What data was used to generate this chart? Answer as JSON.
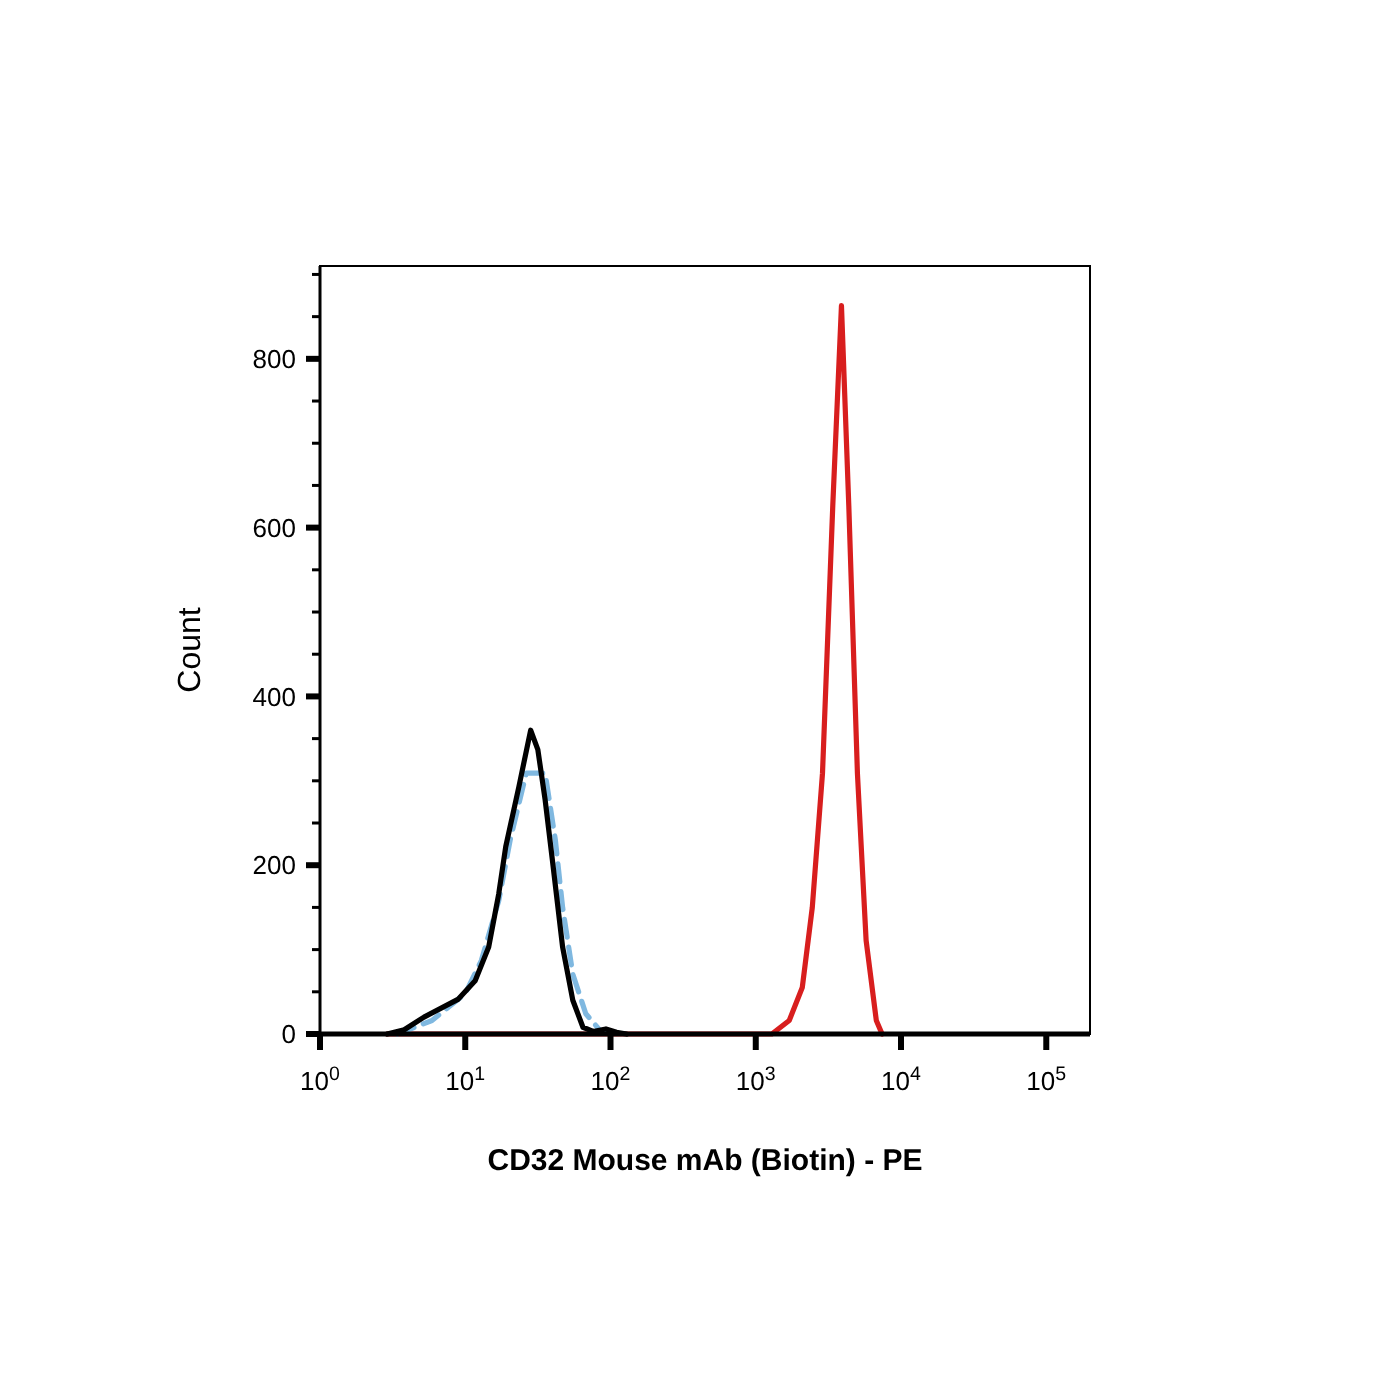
{
  "chart_data": {
    "type": "line",
    "xlabel": "CD32 Mouse mAb (Biotin) - PE",
    "ylabel": "Count",
    "log": "x",
    "xlim": [
      1,
      200000
    ],
    "xticks": [
      {
        "value": 1,
        "label": "10$^{0}$"
      },
      {
        "value": 10,
        "label": "10$^{1}$"
      },
      {
        "value": 100,
        "label": "10$^{2}$"
      },
      {
        "value": 1000,
        "label": "10$^{3}$"
      },
      {
        "value": 10000,
        "label": "10$^{4}$"
      },
      {
        "value": 100000,
        "label": "10$^{5}$"
      }
    ],
    "ylim": [
      0,
      910
    ],
    "yticks": [
      0,
      {
        "value": 50,
        "label": null
      },
      {
        "value": 100,
        "label": null
      },
      {
        "value": 150,
        "label": null
      },
      200,
      {
        "value": 250,
        "label": null
      },
      {
        "value": 300,
        "label": null
      },
      {
        "value": 350,
        "label": null
      },
      400,
      {
        "value": 450,
        "label": null
      },
      {
        "value": 500,
        "label": null
      },
      {
        "value": 550,
        "label": null
      },
      600,
      {
        "value": 650,
        "label": null
      },
      {
        "value": 700,
        "label": null
      },
      {
        "value": 750,
        "label": null
      },
      800,
      {
        "value": 850,
        "label": null
      },
      {
        "value": 900,
        "label": null
      }
    ],
    "grid": false,
    "series": [
      {
        "color": "#d81e1e",
        "x": [
          2.9,
          100,
          1290,
          1700,
          2090,
          2450,
          2880,
          3390,
          3890,
          4370,
          5010,
          5750,
          6760,
          7410
        ],
        "values": [
          0,
          0,
          0,
          16,
          55,
          150,
          309,
          626,
          863,
          626,
          309,
          111,
          16,
          0
        ]
      },
      {
        "color": "#7fb8e0",
        "line_style": "dashed",
        "x": [
          3.4,
          5.9,
          10,
          12.9,
          17,
          20.4,
          26.3,
          35.5,
          41.7,
          46.8,
          55,
          67.6,
          85,
          100
        ],
        "values": [
          0,
          16,
          48,
          87,
          158,
          230,
          309,
          309,
          230,
          150,
          71,
          24,
          4,
          0
        ]
      },
      {
        "color": "#000000",
        "x": [
          2.9,
          3.8,
          5.2,
          8.9,
          11.7,
          14.5,
          17,
          19,
          23.4,
          28.2,
          31.6,
          35.5,
          39.8,
          46.8,
          55,
          64.6,
          75.9,
          93,
          110,
          129
        ],
        "values": [
          0,
          5,
          20,
          41,
          63,
          103,
          166,
          222,
          293,
          360,
          337,
          277,
          206,
          103,
          40,
          8,
          3,
          6,
          2,
          0
        ]
      }
    ]
  }
}
